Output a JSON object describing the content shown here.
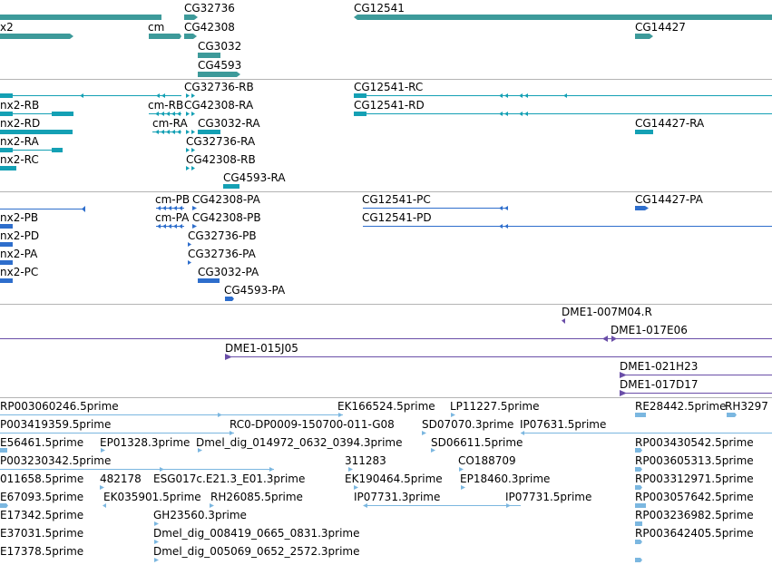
{
  "colors": {
    "gene": "#3d9a9a",
    "transcript": "#14a0b4",
    "protein": "#2e6ecc",
    "clone": "#6a4ea8",
    "est": "#7bb7e0",
    "separator": "#b4b4b4"
  },
  "tracks": {
    "genes": {
      "labels": [
        "x2",
        "cm",
        "CG32736",
        "CG42308",
        "CG3032",
        "CG4593",
        "CG12541",
        "CG14427"
      ]
    },
    "transcripts": {
      "labels": [
        "nx2-RB",
        "nx2-RD",
        "nx2-RA",
        "nx2-RC",
        "CG32736-RB",
        "cm-RB",
        "CG42308-RA",
        "cm-RA",
        "CG3032-RA",
        "CG32736-RA",
        "CG42308-RB",
        "CG4593-RA",
        "CG12541-RC",
        "CG12541-RD",
        "CG14427-RA"
      ]
    },
    "proteins": {
      "labels": [
        "nx2-PB",
        "nx2-PD",
        "nx2-PA",
        "nx2-PC",
        "cm-PB",
        "CG42308-PA",
        "cm-PA",
        "CG42308-PB",
        "CG32736-PB",
        "CG32736-PA",
        "CG3032-PA",
        "CG4593-PA",
        "CG12541-PC",
        "CG12541-PD",
        "CG14427-PA"
      ]
    },
    "clones": {
      "labels": [
        "DME1-007M04.R",
        "DME1-017E06",
        "DME1-015J05",
        "DME1-021H23",
        "DME1-017D17"
      ]
    },
    "ests": {
      "labels": [
        "RP003060246.5prime",
        "EK166524.5prime",
        "LP11227.5prime",
        "RE28442.5prime",
        "RH3297",
        "P003419359.5prime",
        "RC0-DP0009-150700-011-G08",
        "SD07070.3prime",
        "IP07631.5prime",
        "E56461.5prime",
        "EP01328.3prime",
        "Dmel_dig_014972_0632_0394.3prime",
        "SD06611.5prime",
        "RP003430542.5prime",
        "P003230342.5prime",
        "311283",
        "CO188709",
        "RP003605313.5prime",
        "011658.5prime",
        "482178",
        "ESG017c.E21.3_E01.3prime",
        "EK190464.5prime",
        "EP18460.3prime",
        "RP003312971.5prime",
        "E67093.5prime",
        "EK035901.5prime",
        "RH26085.5prime",
        "IP07731.3prime",
        "IP07731.5prime",
        "RP003057642.5prime",
        "E17342.5prime",
        "GH23560.3prime",
        "RP003236982.5prime",
        "E37031.5prime",
        "Dmel_dig_008419_0665_0831.3prime",
        "RP003642405.5prime",
        "E17378.5prime",
        "Dmel_dig_005069_0652_2572.3prime"
      ]
    }
  }
}
